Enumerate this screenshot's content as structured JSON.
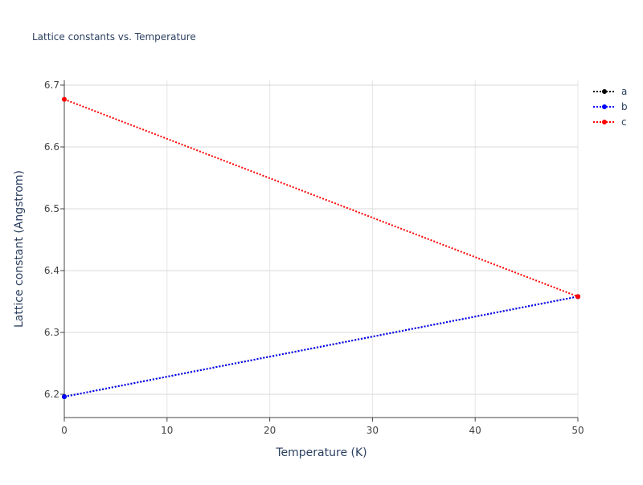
{
  "chart_data": {
    "type": "line",
    "title": "Lattice constants vs. Temperature",
    "x_label": "Temperature (K)",
    "y_label": "Lattice constant (Angstrom)",
    "x": [
      0,
      50
    ],
    "series": [
      {
        "name": "a",
        "color": "#000000",
        "values": [
          6.196,
          6.358
        ]
      },
      {
        "name": "b",
        "color": "#0000ff",
        "values": [
          6.196,
          6.358
        ]
      },
      {
        "name": "c",
        "color": "#ff0000",
        "values": [
          6.677,
          6.358
        ]
      }
    ],
    "xlim": [
      0,
      50
    ],
    "xticks": [
      0,
      10,
      20,
      30,
      40,
      50
    ],
    "ylim": [
      6.1623,
      6.7078
    ],
    "yticks": [
      6.2,
      6.3,
      6.4,
      6.5,
      6.6,
      6.7
    ],
    "grid": true,
    "legend": "top-right"
  }
}
